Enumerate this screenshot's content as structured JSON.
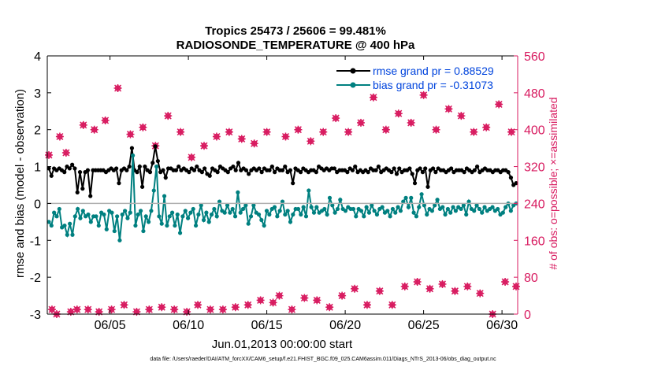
{
  "chart_data": {
    "type": "line",
    "title_line1": "Tropics 25473 / 25606 = 99.481%",
    "title_line2": "RADIOSONDE_TEMPERATURE @ 400 hPa",
    "xlabel": "Jun.01,2013 00:00:00 start",
    "ylabel_left": "rmse and bias (model - observation)",
    "ylabel_right": "# of obs: o=possible; ×=assimilated",
    "footer": "data file: /Users/raeder/DAI/ATM_forcXX/CAM6_setup/f.e21.FHIST_BGC.f09_025.CAM6assim.011/Diags_NTrS_2013-06/obs_diag_output.nc",
    "x_tick_labels": [
      "06/05",
      "06/10",
      "06/15",
      "06/20",
      "06/25",
      "06/30"
    ],
    "x_tick_days": [
      5,
      10,
      15,
      20,
      25,
      30
    ],
    "xlim_days": [
      1,
      31
    ],
    "ylim_left": [
      -3,
      4
    ],
    "yticks_left": [
      "-3",
      "-2",
      "-1",
      "0",
      "1",
      "2",
      "3",
      "4"
    ],
    "ylim_right": [
      0,
      560
    ],
    "yticks_right": [
      "0",
      "80",
      "160",
      "240",
      "320",
      "400",
      "480",
      "560"
    ],
    "colors": {
      "rmse": "#000000",
      "bias": "#008080",
      "obs": "#d81b60",
      "zero_line": "#b0b0b0",
      "right_axis": "#d81b60",
      "legend_text": "#0044dd"
    },
    "legend": [
      {
        "key": "rmse",
        "label": "rmse grand pr = 0.88529"
      },
      {
        "key": "bias",
        "label": "bias grand pr = -0.31073"
      }
    ],
    "series": [
      {
        "name": "rmse",
        "color": "#000000",
        "values": [
          0.95,
          0.75,
          0.95,
          0.9,
          0.95,
          0.9,
          0.85,
          1.0,
          0.95,
          1.05,
          0.95,
          0.3,
          0.85,
          0.4,
          0.85,
          0.9,
          0.2,
          0.9,
          0.9,
          0.9,
          0.9,
          0.9,
          0.85,
          0.9,
          0.95,
          0.9,
          0.95,
          0.55,
          0.9,
          0.95,
          0.9,
          1.0,
          1.5,
          0.9,
          0.85,
          1.0,
          0.45,
          1.0,
          0.9,
          0.85,
          1.1,
          1.55,
          1.15,
          0.85,
          0.9,
          0.7,
          0.95,
          0.95,
          0.9,
          0.9,
          1.0,
          0.9,
          0.95,
          0.9,
          0.85,
          0.95,
          0.9,
          1.0,
          0.9,
          0.85,
          0.95,
          0.8,
          0.75,
          0.95,
          0.9,
          0.85,
          1.0,
          0.95,
          0.9,
          0.85,
          0.95,
          1.0,
          0.9,
          1.1,
          0.9,
          0.95,
          0.9,
          0.8,
          0.9,
          0.95,
          0.9,
          0.95,
          0.85,
          0.95,
          0.9,
          0.9,
          1.0,
          0.85,
          0.95,
          0.9,
          0.9,
          1.0,
          0.85,
          0.9,
          0.55,
          0.95,
          0.9,
          0.85,
          0.95,
          0.9,
          0.85,
          0.9,
          0.9,
          0.85,
          1.0,
          0.95,
          0.9,
          0.95,
          0.9,
          0.95,
          0.95,
          0.85,
          0.9,
          0.9,
          0.9,
          0.85,
          0.95,
          0.9,
          1.0,
          0.85,
          0.9,
          0.85,
          0.9,
          0.85,
          0.95,
          0.9,
          0.9,
          1.0,
          0.85,
          0.9,
          0.95,
          0.9,
          0.85,
          0.95,
          0.8,
          0.95,
          0.85,
          0.9,
          0.9,
          0.95,
          0.8,
          0.55,
          0.9,
          0.95,
          0.85,
          0.95,
          0.45,
          0.9,
          0.95,
          0.85,
          0.95,
          0.9,
          0.9,
          0.85,
          0.9,
          0.95,
          0.85,
          0.9,
          0.9,
          0.9,
          0.85,
          0.95,
          0.9,
          0.85,
          0.9,
          1.0,
          0.85,
          0.9,
          0.95,
          0.9,
          0.9,
          0.85,
          0.9,
          0.9,
          0.85,
          0.9,
          0.9,
          0.85,
          0.7,
          0.5,
          0.55
        ]
      },
      {
        "name": "bias",
        "color": "#008080",
        "values": [
          -0.5,
          -0.6,
          -0.25,
          -0.35,
          -0.15,
          -0.65,
          -0.6,
          -0.85,
          -0.55,
          -0.85,
          -0.35,
          -0.15,
          -0.4,
          -0.2,
          -0.35,
          -0.3,
          -0.5,
          -0.35,
          -0.35,
          -0.6,
          -0.25,
          -0.3,
          -0.7,
          -0.2,
          -0.25,
          -0.75,
          -0.35,
          -1.0,
          -0.3,
          -0.2,
          -0.4,
          -0.25,
          1.3,
          -0.6,
          -0.3,
          -0.2,
          -0.75,
          -0.35,
          -0.5,
          -0.2,
          0.35,
          1.0,
          -0.35,
          -0.55,
          0.2,
          -0.6,
          -0.35,
          -0.25,
          -0.6,
          -0.3,
          -0.8,
          -0.35,
          -0.2,
          -0.4,
          -0.25,
          -0.15,
          -0.6,
          -0.3,
          -0.05,
          -0.45,
          -0.25,
          -0.5,
          -0.3,
          -0.15,
          -0.35,
          0.05,
          -0.2,
          -0.25,
          -0.05,
          -0.25,
          -0.15,
          -0.35,
          0.3,
          -0.25,
          -0.15,
          -0.05,
          -0.55,
          -0.35,
          -0.05,
          -0.25,
          -0.3,
          -0.45,
          -0.6,
          -0.2,
          -0.3,
          -0.15,
          -0.1,
          -0.35,
          -0.2,
          0.05,
          -0.3,
          -0.2,
          -0.5,
          -0.3,
          -0.15,
          -0.15,
          -0.3,
          -0.1,
          -0.35,
          0.35,
          -0.1,
          -0.25,
          -0.1,
          -0.25,
          -0.2,
          -0.15,
          -0.3,
          0.15,
          -0.05,
          -0.25,
          -0.15,
          0.1,
          -0.15,
          -0.2,
          -0.1,
          -0.15,
          -0.15,
          -0.35,
          -0.15,
          -0.2,
          -0.35,
          -0.1,
          -0.25,
          -0.05,
          -0.2,
          -0.3,
          -0.15,
          -0.1,
          -0.25,
          -0.2,
          -0.35,
          -0.15,
          -0.25,
          -0.1,
          -0.2,
          0.05,
          0.15,
          -0.1,
          0.15,
          -0.25,
          -0.35,
          -0.1,
          0.25,
          -0.05,
          -0.3,
          -0.15,
          -0.2,
          -0.05,
          0.1,
          -0.15,
          -0.1,
          -0.3,
          -0.15,
          -0.25,
          -0.1,
          -0.2,
          -0.1,
          -0.15,
          -0.05,
          -0.3,
          0.05,
          -0.15,
          -0.2,
          -0.05,
          -0.15,
          -0.25,
          -0.1,
          -0.2,
          -0.15,
          -0.1,
          -0.2,
          -0.15,
          -0.3,
          -0.25,
          -0.1,
          0.0,
          -0.2,
          -0.05,
          0.0
        ]
      },
      {
        "name": "obs_possible",
        "color": "#d81b60",
        "points": [
          [
            1.1,
            345
          ],
          [
            1.3,
            10
          ],
          [
            1.6,
            0
          ],
          [
            1.8,
            385
          ],
          [
            2.2,
            350
          ],
          [
            2.5,
            5
          ],
          [
            2.9,
            10
          ],
          [
            3.3,
            410
          ],
          [
            3.6,
            10
          ],
          [
            4.0,
            400
          ],
          [
            4.3,
            5
          ],
          [
            4.7,
            420
          ],
          [
            5.1,
            10
          ],
          [
            5.5,
            490
          ],
          [
            5.9,
            20
          ],
          [
            6.3,
            390
          ],
          [
            6.7,
            5
          ],
          [
            7.1,
            405
          ],
          [
            7.5,
            10
          ],
          [
            7.9,
            365
          ],
          [
            8.3,
            15
          ],
          [
            8.7,
            430
          ],
          [
            9.1,
            10
          ],
          [
            9.5,
            395
          ],
          [
            9.9,
            5
          ],
          [
            10.2,
            340
          ],
          [
            10.6,
            20
          ],
          [
            11.0,
            365
          ],
          [
            11.4,
            10
          ],
          [
            11.8,
            385
          ],
          [
            12.2,
            10
          ],
          [
            12.6,
            395
          ],
          [
            13.0,
            15
          ],
          [
            13.4,
            380
          ],
          [
            13.8,
            20
          ],
          [
            14.2,
            370
          ],
          [
            14.6,
            30
          ],
          [
            15.0,
            395
          ],
          [
            15.4,
            25
          ],
          [
            15.8,
            40
          ],
          [
            16.2,
            385
          ],
          [
            16.6,
            10
          ],
          [
            17.0,
            400
          ],
          [
            17.4,
            35
          ],
          [
            17.8,
            375
          ],
          [
            18.2,
            30
          ],
          [
            18.6,
            395
          ],
          [
            19.0,
            15
          ],
          [
            19.4,
            425
          ],
          [
            19.8,
            40
          ],
          [
            20.2,
            395
          ],
          [
            20.6,
            55
          ],
          [
            21.0,
            415
          ],
          [
            21.4,
            20
          ],
          [
            21.8,
            470
          ],
          [
            22.2,
            50
          ],
          [
            22.6,
            400
          ],
          [
            23.0,
            20
          ],
          [
            23.4,
            435
          ],
          [
            23.8,
            60
          ],
          [
            24.2,
            415
          ],
          [
            24.6,
            70
          ],
          [
            25.0,
            475
          ],
          [
            25.4,
            55
          ],
          [
            25.8,
            400
          ],
          [
            26.2,
            65
          ],
          [
            26.6,
            445
          ],
          [
            27.0,
            50
          ],
          [
            27.4,
            430
          ],
          [
            27.8,
            60
          ],
          [
            28.2,
            395
          ],
          [
            28.6,
            45
          ],
          [
            29.0,
            405
          ],
          [
            29.4,
            0
          ],
          [
            29.8,
            455
          ],
          [
            30.2,
            70
          ],
          [
            30.6,
            395
          ],
          [
            30.9,
            60
          ]
        ]
      },
      {
        "name": "obs_assimilated",
        "color": "#d81b60",
        "points": [
          [
            1.1,
            345
          ],
          [
            1.3,
            10
          ],
          [
            1.6,
            0
          ],
          [
            1.8,
            385
          ],
          [
            2.2,
            350
          ],
          [
            2.5,
            5
          ],
          [
            2.9,
            10
          ],
          [
            3.3,
            410
          ],
          [
            3.6,
            10
          ],
          [
            4.0,
            400
          ],
          [
            4.3,
            5
          ],
          [
            4.7,
            420
          ],
          [
            5.1,
            10
          ],
          [
            5.5,
            490
          ],
          [
            5.9,
            20
          ],
          [
            6.3,
            390
          ],
          [
            6.7,
            5
          ],
          [
            7.1,
            405
          ],
          [
            7.5,
            10
          ],
          [
            7.9,
            365
          ],
          [
            8.3,
            15
          ],
          [
            8.7,
            430
          ],
          [
            9.1,
            10
          ],
          [
            9.5,
            395
          ],
          [
            9.9,
            5
          ],
          [
            10.2,
            340
          ],
          [
            10.6,
            20
          ],
          [
            11.0,
            365
          ],
          [
            11.4,
            10
          ],
          [
            11.8,
            385
          ],
          [
            12.2,
            10
          ],
          [
            12.6,
            395
          ],
          [
            13.0,
            15
          ],
          [
            13.4,
            380
          ],
          [
            13.8,
            20
          ],
          [
            14.2,
            370
          ],
          [
            14.6,
            30
          ],
          [
            15.0,
            395
          ],
          [
            15.4,
            25
          ],
          [
            15.8,
            40
          ],
          [
            16.2,
            385
          ],
          [
            16.6,
            10
          ],
          [
            17.0,
            400
          ],
          [
            17.4,
            35
          ],
          [
            17.8,
            375
          ],
          [
            18.2,
            30
          ],
          [
            18.6,
            395
          ],
          [
            19.0,
            15
          ],
          [
            19.4,
            425
          ],
          [
            19.8,
            40
          ],
          [
            20.2,
            395
          ],
          [
            20.6,
            55
          ],
          [
            21.0,
            415
          ],
          [
            21.4,
            20
          ],
          [
            21.8,
            470
          ],
          [
            22.2,
            50
          ],
          [
            22.6,
            400
          ],
          [
            23.0,
            20
          ],
          [
            23.4,
            435
          ],
          [
            23.8,
            60
          ],
          [
            24.2,
            415
          ],
          [
            24.6,
            70
          ],
          [
            25.0,
            475
          ],
          [
            25.4,
            55
          ],
          [
            25.8,
            400
          ],
          [
            26.2,
            65
          ],
          [
            26.6,
            445
          ],
          [
            27.0,
            50
          ],
          [
            27.4,
            430
          ],
          [
            27.8,
            60
          ],
          [
            28.2,
            395
          ],
          [
            28.6,
            45
          ],
          [
            29.0,
            405
          ],
          [
            29.4,
            0
          ],
          [
            29.8,
            455
          ],
          [
            30.2,
            70
          ],
          [
            30.6,
            395
          ],
          [
            30.9,
            60
          ]
        ]
      }
    ]
  }
}
